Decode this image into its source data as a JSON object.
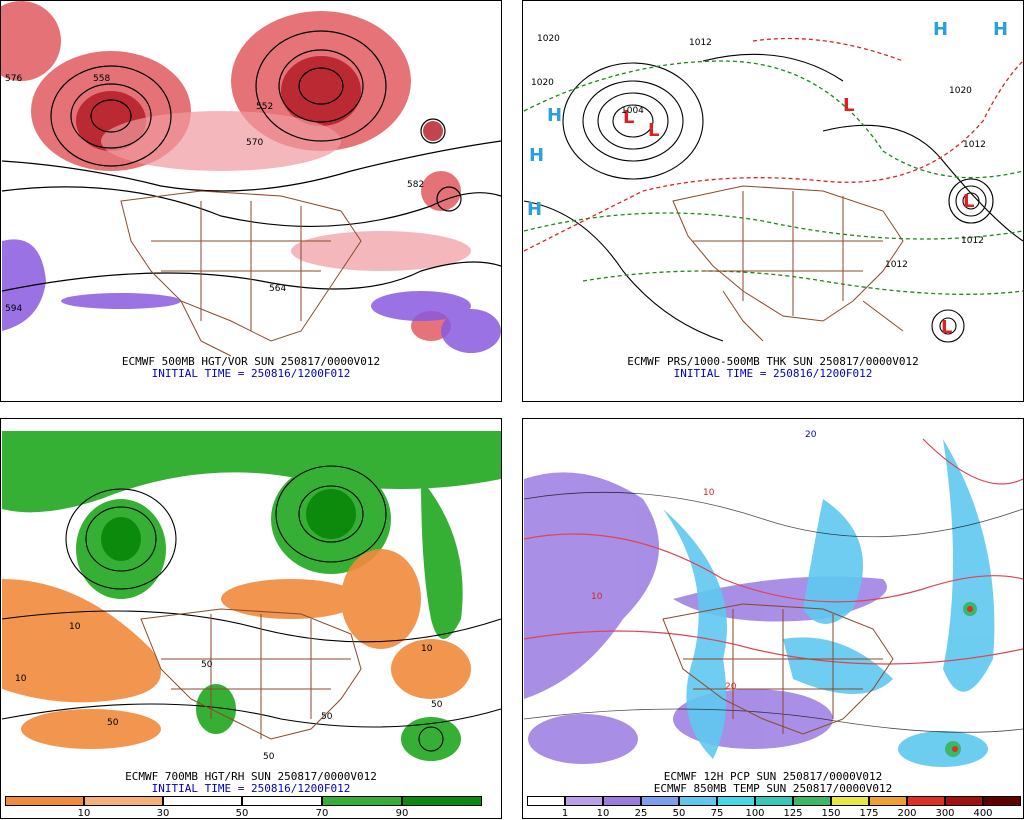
{
  "panels": [
    {
      "id": "p1",
      "line1": "ECMWF 500MB HGT/VOR SUN 250817/0000V012",
      "line2": "INITIAL TIME = 250816/1200F012",
      "labels": [
        "570",
        "558",
        "582",
        "594",
        "564",
        "552",
        "576"
      ]
    },
    {
      "id": "p2",
      "line1": "ECMWF PRS/1000-500MB THK SUN 250817/0000V012",
      "line2": "INITIAL TIME = 250816/1200F012",
      "labels": [
        "1020",
        "1020",
        "1012",
        "1012",
        "1012",
        "1020",
        "1012",
        "1004"
      ],
      "highs": [
        "H",
        "H",
        "H",
        "H",
        "H"
      ],
      "lows": [
        "L",
        "L",
        "L",
        "L",
        "L"
      ]
    },
    {
      "id": "p3",
      "line1": "ECMWF 700MB HGT/RH SUN 250817/0000V012",
      "line2": "INITIAL TIME = 250816/1200F012",
      "labels": [
        "50",
        "50",
        "10",
        "10",
        "50",
        "10",
        "50",
        "50"
      ]
    },
    {
      "id": "p4",
      "line1": "ECMWF 12H PCP SUN 250817/0000V012",
      "line2": "ECMWF 850MB TEMP SUN 250817/0000V012",
      "labels": [
        "10",
        "20",
        "10",
        "20"
      ]
    }
  ],
  "rh_colorbar": {
    "ticks": [
      "10",
      "30",
      "50",
      "70",
      "90"
    ],
    "colors": [
      "#f08a3c",
      "#f5b07a",
      "#ffffff",
      "#ffffff",
      "#35b035",
      "#0c8a0c"
    ]
  },
  "pcp_colorbar": {
    "ticks": [
      "1",
      "10",
      "25",
      "50",
      "75",
      "100",
      "125",
      "150",
      "175",
      "200",
      "300",
      "400"
    ],
    "colors": [
      "#ffffff",
      "#b9a0e8",
      "#9a7be0",
      "#7aa0f0",
      "#5ec8f0",
      "#44d8e8",
      "#36c8b8",
      "#38b868",
      "#e8e840",
      "#f0a030",
      "#e03020",
      "#a01010",
      "#600000"
    ]
  },
  "colors": {
    "vort_red": "#d8353b",
    "vort_purple": "#8a5ae0",
    "rh_green": "#1f9a1f",
    "rh_orange": "#f08a3c",
    "border_brown": "#8b4a2b",
    "thk_green": "#1a8a1a",
    "thk_red": "#dd2222",
    "high_blue": "#2aa0e0",
    "low_red": "#dd2020"
  }
}
